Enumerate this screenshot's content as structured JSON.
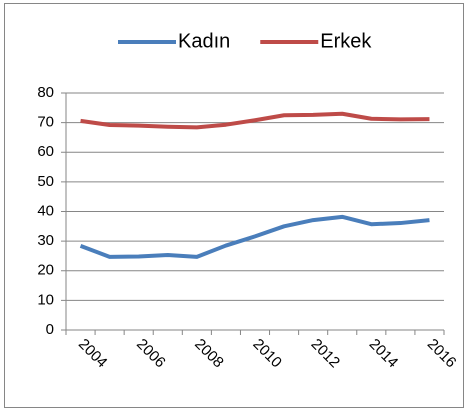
{
  "chart_data": {
    "type": "line",
    "categories": [
      "2004",
      null,
      "2006",
      null,
      "2008",
      null,
      "2010",
      null,
      "2012",
      null,
      "2014",
      null,
      "2016"
    ],
    "series": [
      {
        "name": "Kadın",
        "color": "#4a7ebb",
        "values": [
          28.4,
          24.7,
          24.8,
          25.3,
          24.7,
          28.5,
          31.6,
          35.0,
          37.1,
          38.2,
          35.7,
          36.1,
          37.1
        ]
      },
      {
        "name": "Erkek",
        "color": "#be4b48",
        "values": [
          70.6,
          69.2,
          69.0,
          68.6,
          68.4,
          69.3,
          70.8,
          72.5,
          72.6,
          73.0,
          71.3,
          71.1,
          71.2
        ]
      }
    ],
    "ylim": [
      0,
      80
    ],
    "yticks": [
      0,
      10,
      20,
      30,
      40,
      50,
      60,
      70,
      80
    ],
    "grid": true,
    "legend": "top"
  }
}
